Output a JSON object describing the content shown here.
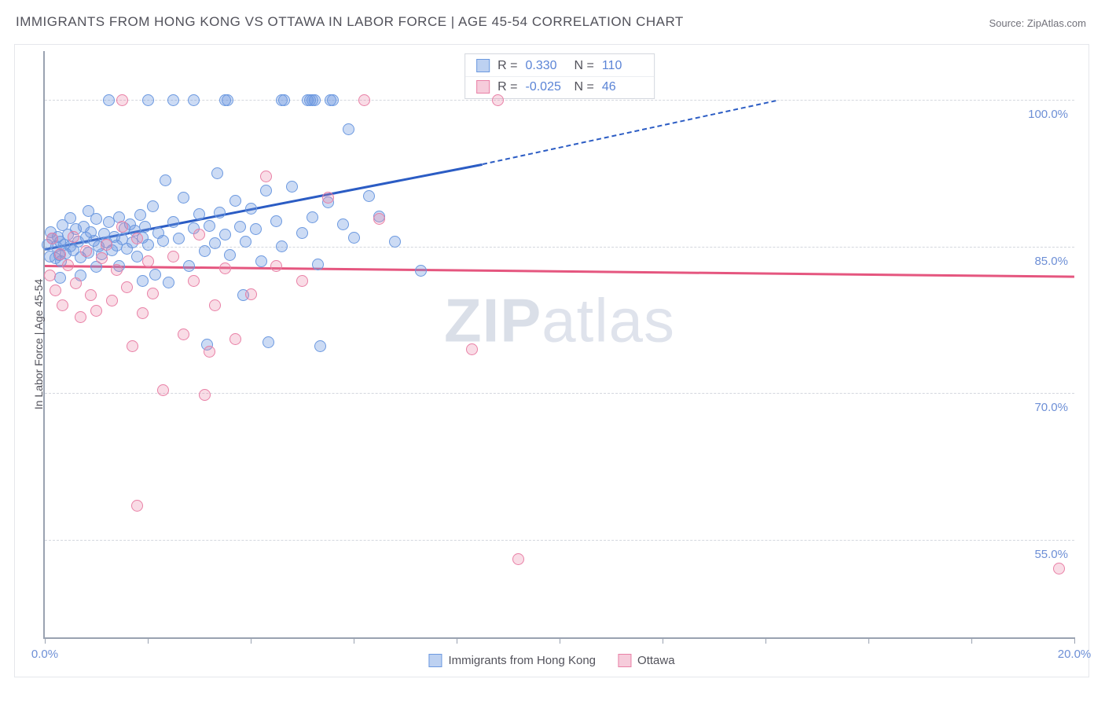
{
  "title": "IMMIGRANTS FROM HONG KONG VS OTTAWA IN LABOR FORCE | AGE 45-54 CORRELATION CHART",
  "source_prefix": "Source: ",
  "source_name": "ZipAtlas.com",
  "watermark_a": "ZIP",
  "watermark_b": "atlas",
  "chart": {
    "type": "scatter",
    "xlabel": "",
    "ylabel": "In Labor Force | Age 45-54",
    "xlim": [
      0,
      20
    ],
    "ylim": [
      45,
      105
    ],
    "xtick_positions": [
      0,
      2,
      4,
      6,
      8,
      10,
      12,
      14,
      16,
      18,
      20
    ],
    "xtick_labels": {
      "0": "0.0%",
      "20": "20.0%"
    },
    "ygrid": [
      55,
      70,
      85,
      100
    ],
    "ytick_labels": {
      "55": "55.0%",
      "70": "70.0%",
      "85": "85.0%",
      "100": "100.0%"
    },
    "grid_color": "#d4d7de",
    "axis_color": "#9aa2b1",
    "background_color": "#ffffff",
    "marker_size": 15,
    "series": [
      {
        "name": "Immigrants from Hong Kong",
        "key": "hk",
        "color_fill": "rgba(108,153,224,0.35)",
        "color_stroke": "#6c99e0",
        "trend_color": "#2b5cc4",
        "R": "0.330",
        "N": "110",
        "trend": {
          "x1": 0,
          "y1": 84.8,
          "x2": 8.5,
          "y2": 93.5,
          "dash_to_x": 14.2,
          "dash_to_y": 100
        },
        "points": [
          [
            0.05,
            85.2
          ],
          [
            0.1,
            84.0
          ],
          [
            0.12,
            86.5
          ],
          [
            0.15,
            85.8
          ],
          [
            0.2,
            83.8
          ],
          [
            0.22,
            85.0
          ],
          [
            0.25,
            86.0
          ],
          [
            0.28,
            84.1
          ],
          [
            0.3,
            85.5
          ],
          [
            0.32,
            83.5
          ],
          [
            0.35,
            87.2
          ],
          [
            0.38,
            85.2
          ],
          [
            0.4,
            84.3
          ],
          [
            0.45,
            86.2
          ],
          [
            0.5,
            85.0
          ],
          [
            0.55,
            84.6
          ],
          [
            0.6,
            86.8
          ],
          [
            0.65,
            85.5
          ],
          [
            0.7,
            83.9
          ],
          [
            0.75,
            87.0
          ],
          [
            0.8,
            85.9
          ],
          [
            0.85,
            84.4
          ],
          [
            0.9,
            86.5
          ],
          [
            0.95,
            85.6
          ],
          [
            1.0,
            87.8
          ],
          [
            1.05,
            85.0
          ],
          [
            1.1,
            84.2
          ],
          [
            1.15,
            86.3
          ],
          [
            1.2,
            85.4
          ],
          [
            1.25,
            87.5
          ],
          [
            1.3,
            84.6
          ],
          [
            1.35,
            86.0
          ],
          [
            1.4,
            85.1
          ],
          [
            1.45,
            88.0
          ],
          [
            1.5,
            85.7
          ],
          [
            1.55,
            86.9
          ],
          [
            1.6,
            84.8
          ],
          [
            1.65,
            87.3
          ],
          [
            1.7,
            85.4
          ],
          [
            1.75,
            86.6
          ],
          [
            1.8,
            84.0
          ],
          [
            1.85,
            88.2
          ],
          [
            1.9,
            85.9
          ],
          [
            1.95,
            87.0
          ],
          [
            2.0,
            85.2
          ],
          [
            2.1,
            89.1
          ],
          [
            2.15,
            82.1
          ],
          [
            2.2,
            86.4
          ],
          [
            2.3,
            85.6
          ],
          [
            2.35,
            91.8
          ],
          [
            2.4,
            81.3
          ],
          [
            2.5,
            87.5
          ],
          [
            2.6,
            85.8
          ],
          [
            2.7,
            90.0
          ],
          [
            2.8,
            83.0
          ],
          [
            2.9,
            86.9
          ],
          [
            3.0,
            88.3
          ],
          [
            3.1,
            84.5
          ],
          [
            3.15,
            75.0
          ],
          [
            3.2,
            87.1
          ],
          [
            3.3,
            85.3
          ],
          [
            3.35,
            92.5
          ],
          [
            3.4,
            88.5
          ],
          [
            3.5,
            86.2
          ],
          [
            3.6,
            84.1
          ],
          [
            3.7,
            89.7
          ],
          [
            3.8,
            87.0
          ],
          [
            3.85,
            80.0
          ],
          [
            3.9,
            85.5
          ],
          [
            4.0,
            88.9
          ],
          [
            4.1,
            86.8
          ],
          [
            4.2,
            83.5
          ],
          [
            4.3,
            90.7
          ],
          [
            4.35,
            75.2
          ],
          [
            4.5,
            87.6
          ],
          [
            4.6,
            85.0
          ],
          [
            4.8,
            91.1
          ],
          [
            5.0,
            86.4
          ],
          [
            5.2,
            88.0
          ],
          [
            5.3,
            83.2
          ],
          [
            5.35,
            74.8
          ],
          [
            5.5,
            89.5
          ],
          [
            5.8,
            87.3
          ],
          [
            5.9,
            97.0
          ],
          [
            6.0,
            85.9
          ],
          [
            6.3,
            90.2
          ],
          [
            6.5,
            88.1
          ],
          [
            6.8,
            85.5
          ],
          [
            7.3,
            82.5
          ],
          [
            0.3,
            81.8
          ],
          [
            0.7,
            82.0
          ],
          [
            1.0,
            82.9
          ],
          [
            1.45,
            83.0
          ],
          [
            1.9,
            81.5
          ],
          [
            0.5,
            87.9
          ],
          [
            0.85,
            88.6
          ],
          [
            1.25,
            100
          ],
          [
            2.0,
            100
          ],
          [
            2.5,
            100
          ],
          [
            2.9,
            100
          ],
          [
            3.5,
            100
          ],
          [
            3.55,
            100
          ],
          [
            4.6,
            100
          ],
          [
            4.65,
            100
          ],
          [
            5.1,
            100
          ],
          [
            5.15,
            100
          ],
          [
            5.2,
            100
          ],
          [
            5.25,
            100
          ],
          [
            5.55,
            100
          ],
          [
            5.6,
            100
          ]
        ]
      },
      {
        "name": "Ottawa",
        "key": "ot",
        "color_fill": "rgba(233,128,166,0.28)",
        "color_stroke": "#e980a6",
        "trend_color": "#e5567f",
        "R": "-0.025",
        "N": "46",
        "trend": {
          "x1": 0,
          "y1": 83.1,
          "x2": 20,
          "y2": 82.0
        },
        "points": [
          [
            0.1,
            82.0
          ],
          [
            0.15,
            85.8
          ],
          [
            0.2,
            80.5
          ],
          [
            0.3,
            84.2
          ],
          [
            0.35,
            79.0
          ],
          [
            0.45,
            83.1
          ],
          [
            0.55,
            86.0
          ],
          [
            0.6,
            81.2
          ],
          [
            0.7,
            77.8
          ],
          [
            0.8,
            84.5
          ],
          [
            0.9,
            80.0
          ],
          [
            1.0,
            78.4
          ],
          [
            1.1,
            83.8
          ],
          [
            1.2,
            85.2
          ],
          [
            1.3,
            79.5
          ],
          [
            1.4,
            82.6
          ],
          [
            1.5,
            87.0
          ],
          [
            1.6,
            80.8
          ],
          [
            1.7,
            74.8
          ],
          [
            1.8,
            85.8
          ],
          [
            1.9,
            78.2
          ],
          [
            2.0,
            83.5
          ],
          [
            2.1,
            80.2
          ],
          [
            2.3,
            70.3
          ],
          [
            2.5,
            84.0
          ],
          [
            2.7,
            76.0
          ],
          [
            2.9,
            81.5
          ],
          [
            3.0,
            86.2
          ],
          [
            3.1,
            69.8
          ],
          [
            3.2,
            74.2
          ],
          [
            3.3,
            79.0
          ],
          [
            3.5,
            82.8
          ],
          [
            3.7,
            75.5
          ],
          [
            4.0,
            80.1
          ],
          [
            4.3,
            92.2
          ],
          [
            4.5,
            83.0
          ],
          [
            5.0,
            81.5
          ],
          [
            5.5,
            90.0
          ],
          [
            6.2,
            100
          ],
          [
            1.5,
            100
          ],
          [
            6.5,
            87.8
          ],
          [
            8.3,
            74.5
          ],
          [
            8.8,
            100
          ],
          [
            9.2,
            53.0
          ],
          [
            1.8,
            58.5
          ],
          [
            19.7,
            52.0
          ]
        ]
      }
    ]
  },
  "stats_label_R": "R =",
  "stats_label_N": "N =",
  "legend": [
    {
      "swatch": "blue",
      "label": "Immigrants from Hong Kong"
    },
    {
      "swatch": "pink",
      "label": "Ottawa"
    }
  ]
}
